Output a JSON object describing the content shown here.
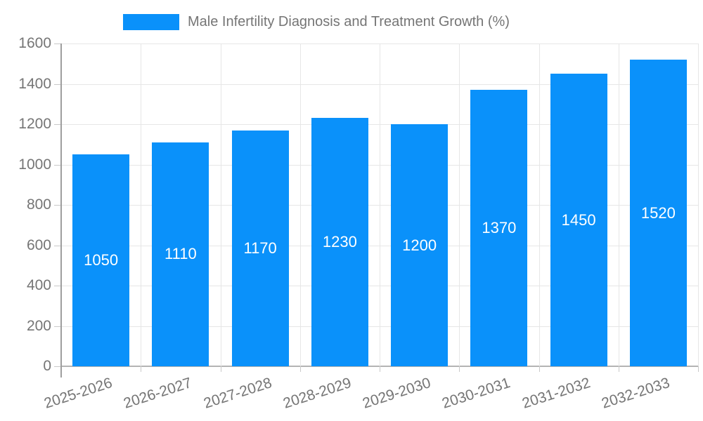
{
  "chart_data": {
    "type": "bar",
    "title": "Male Infertility Diagnosis and Treatment Growth (%)",
    "categories": [
      "2025-2026",
      "2026-2027",
      "2027-2028",
      "2028-2029",
      "2029-2030",
      "2030-2031",
      "2031-2032",
      "2032-2033"
    ],
    "values": [
      1050,
      1110,
      1170,
      1230,
      1200,
      1370,
      1450,
      1520
    ],
    "xlabel": "",
    "ylabel": "",
    "ylim": [
      0,
      1600
    ],
    "ytick_step": 200,
    "ytick_labels": [
      "0",
      "200",
      "400",
      "600",
      "800",
      "1000",
      "1200",
      "1400",
      "1600"
    ],
    "grid": true,
    "legend_position": "top",
    "value_label_position": "inside-center",
    "colors": {
      "bar": "#0a91fa",
      "bar_value_label": "#ffffff",
      "axis_label": "#757575",
      "gridline": "#e6e6e6",
      "axis_line": "#9e9e9e",
      "tick": "#c9c9c9",
      "background": "#ffffff"
    }
  }
}
